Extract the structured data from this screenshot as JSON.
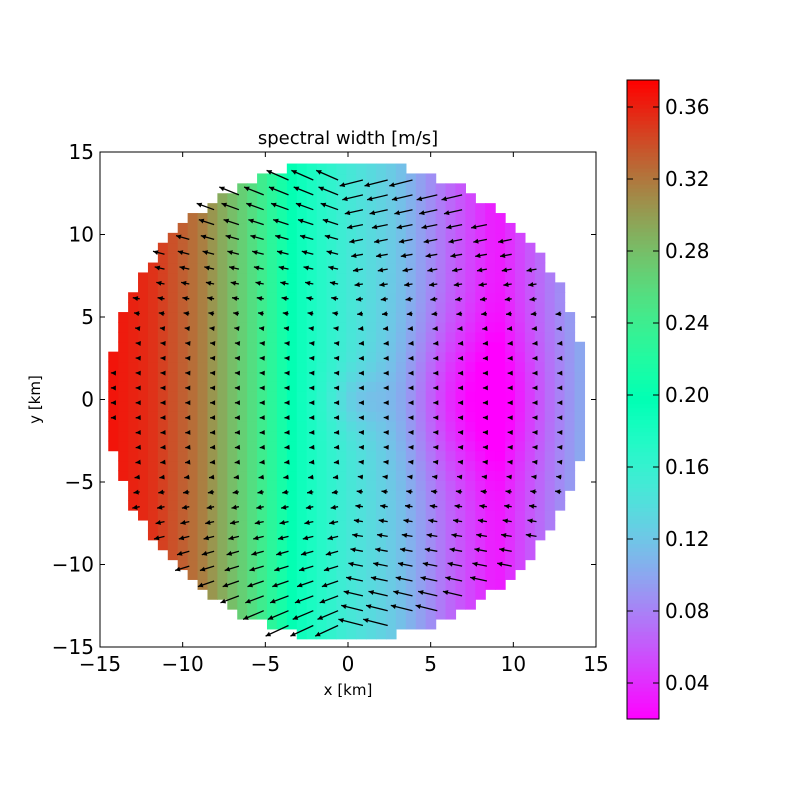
{
  "chart_data": {
    "type": "heatmap",
    "title": "spectral width [m/s]",
    "xlabel": "x [km]",
    "ylabel": "y [km]",
    "xlim": [
      -15,
      15
    ],
    "ylim": [
      -15,
      15
    ],
    "x_ticks": [
      -15,
      -10,
      -5,
      0,
      5,
      10,
      15
    ],
    "y_ticks": [
      -15,
      -10,
      -5,
      0,
      5,
      10,
      15
    ],
    "x_tick_labels": [
      "−15",
      "−10",
      "−5",
      "0",
      "5",
      "10",
      "15"
    ],
    "y_tick_labels": [
      "−15",
      "−10",
      "−5",
      "0",
      "5",
      "10",
      "15"
    ],
    "domain": {
      "shape": "circle",
      "center": [
        0,
        0
      ],
      "radius": 14.5,
      "grid_resolution_km": 0.6
    },
    "field_description_profile": {
      "x_km": [
        -15,
        -12,
        -9,
        -6,
        -3,
        0,
        3,
        6,
        9,
        12,
        15
      ],
      "value_m_s": [
        0.37,
        0.355,
        0.32,
        0.26,
        0.19,
        0.15,
        0.12,
        0.07,
        0.03,
        0.075,
        0.115
      ]
    },
    "minimum_location_km": [
      7.2,
      0
    ],
    "quiver": {
      "spacing_km": 1.5,
      "color": "#000000",
      "note": "wind vectors, stronger near top and bottom of domain"
    },
    "colorbar": {
      "colormap": "rainbow",
      "range": [
        0.02,
        0.375
      ],
      "ticks": [
        0.04,
        0.08,
        0.12,
        0.16,
        0.2,
        0.24,
        0.28,
        0.32,
        0.36
      ],
      "tick_labels": [
        "0.04",
        "0.08",
        "0.12",
        "0.16",
        "0.20",
        "0.24",
        "0.28",
        "0.32",
        "0.36"
      ]
    },
    "grid": false
  }
}
